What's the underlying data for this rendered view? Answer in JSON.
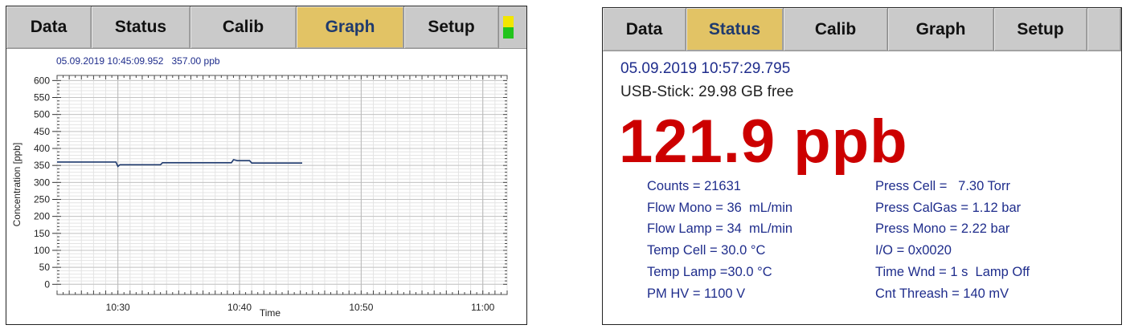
{
  "left_panel": {
    "tabs": [
      {
        "label": "Data",
        "active": false
      },
      {
        "label": "Status",
        "active": false
      },
      {
        "label": "Calib",
        "active": false
      },
      {
        "label": "Graph",
        "active": true
      },
      {
        "label": "Setup",
        "active": false
      }
    ],
    "indicator_colors": [
      "#f2e600",
      "#22c41c"
    ],
    "header_timestamp": "05.09.2019 10:45:09.952",
    "header_value": "357.00 ppb"
  },
  "chart_data": {
    "type": "line",
    "xlabel": "Time",
    "ylabel": "Concentration [ppb]",
    "x_ticks": [
      "10:30",
      "10:40",
      "10:50",
      "11:00"
    ],
    "y_ticks": [
      600,
      550,
      500,
      450,
      400,
      350,
      300,
      250,
      200,
      150,
      100,
      50,
      0
    ],
    "xlim": [
      "10:25",
      "11:02"
    ],
    "ylim": [
      -30,
      615
    ],
    "grid": true,
    "line_color": "#1f3a6e",
    "series": [
      {
        "x": [
          "10:25:00",
          "10:29:50",
          "10:30:00",
          "10:30:10",
          "10:33:30",
          "10:33:40",
          "10:39:20",
          "10:39:30",
          "10:39:50",
          "10:40:00",
          "10:40:50",
          "10:41:00",
          "10:45:09"
        ],
        "y": [
          360,
          360,
          347,
          352,
          352,
          358,
          358,
          367,
          364,
          364,
          364,
          357,
          357
        ]
      }
    ]
  },
  "right_panel": {
    "tabs": [
      {
        "label": "Data",
        "active": false
      },
      {
        "label": "Status",
        "active": true
      },
      {
        "label": "Calib",
        "active": false
      },
      {
        "label": "Graph",
        "active": false
      },
      {
        "label": "Setup",
        "active": false
      }
    ],
    "timestamp": "05.09.2019 10:57:29.795",
    "usb": "USB-Stick: 29.98 GB free",
    "big_value": "121.9 ppb",
    "params_left": [
      "Counts = 21631",
      "Flow Mono = 36  mL/min",
      "Flow Lamp = 34  mL/min",
      "Temp Cell = 30.0 °C",
      "Temp Lamp =30.0 °C",
      "PM HV = 1100 V"
    ],
    "params_right": [
      "Press Cell =   7.30 Torr",
      "Press CalGas = 1.12 bar",
      "Press Mono = 2.22 bar",
      "I/O = 0x0020",
      "Time Wnd = 1 s  Lamp Off",
      "Cnt Threash = 140 mV"
    ]
  }
}
